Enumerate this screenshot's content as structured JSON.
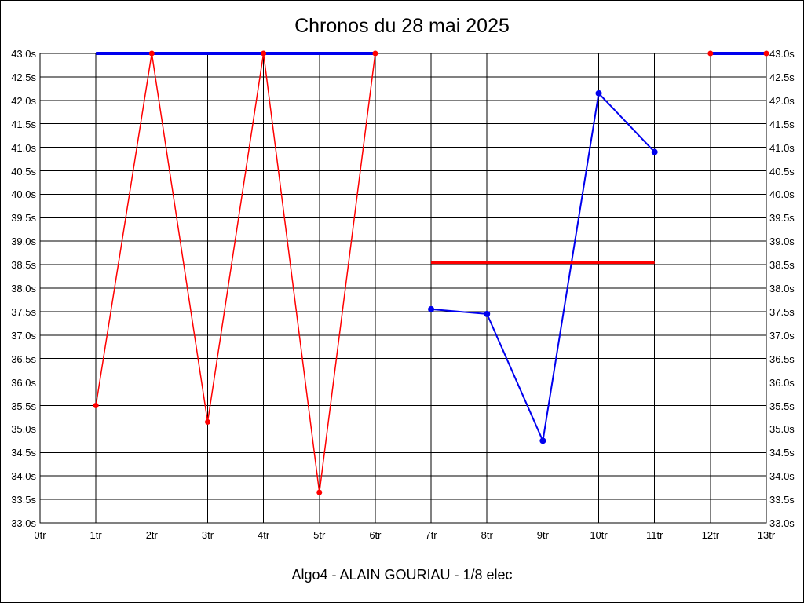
{
  "title": "Chronos du 28 mai 2025",
  "footer": "Algo4 - ALAIN GOURIAU - 1/8 elec",
  "chart_data": {
    "type": "line",
    "title": "Chronos du 28 mai 2025",
    "subtitle": "Algo4 - ALAIN GOURIAU - 1/8 elec",
    "xlabel": "",
    "ylabel": "",
    "x_unit": "tr",
    "y_unit": "s",
    "xlim": [
      0,
      13
    ],
    "ylim": [
      33.0,
      43.0
    ],
    "grid": true,
    "grid_color": "#000000",
    "axis_labels_both_sides": true,
    "x_ticks": [
      0,
      1,
      2,
      3,
      4,
      5,
      6,
      7,
      8,
      9,
      10,
      11,
      12,
      13
    ],
    "x_tick_labels": [
      "0tr",
      "1tr",
      "2tr",
      "3tr",
      "4tr",
      "5tr",
      "6tr",
      "7tr",
      "8tr",
      "9tr",
      "10tr",
      "11tr",
      "12tr",
      "13tr"
    ],
    "y_tick_step": 0.5,
    "y_tick_labels": [
      "43.0s",
      "42.5s",
      "42.0s",
      "41.5s",
      "41.0s",
      "40.5s",
      "40.0s",
      "39.5s",
      "39.0s",
      "38.5s",
      "38.0s",
      "37.5s",
      "37.0s",
      "36.5s",
      "36.0s",
      "35.5s",
      "35.0s",
      "34.5s",
      "34.0s",
      "33.5s",
      "33.0s"
    ],
    "colors": {
      "red": "#ff0000",
      "blue": "#0000ee"
    },
    "series": [
      {
        "name": "blue-series",
        "color": "#0000ee",
        "segments": [
          {
            "points": [
              [
                1,
                43.0
              ],
              [
                6,
                43.0
              ]
            ],
            "line_width": 4,
            "markers": false,
            "marker_size": 0
          },
          {
            "points": [
              [
                7,
                37.55
              ],
              [
                8,
                37.45
              ],
              [
                9,
                34.75
              ],
              [
                10,
                42.15
              ],
              [
                11,
                40.9
              ]
            ],
            "line_width": 2,
            "markers": true,
            "marker_size": 4
          },
          {
            "points": [
              [
                12,
                43.0
              ],
              [
                13,
                43.0
              ]
            ],
            "line_width": 4,
            "markers": false,
            "marker_size": 0
          }
        ]
      },
      {
        "name": "red-series",
        "color": "#ff0000",
        "segments": [
          {
            "points": [
              [
                1,
                35.5
              ],
              [
                2,
                43.0
              ],
              [
                3,
                35.15
              ],
              [
                4,
                43.0
              ],
              [
                5,
                33.65
              ],
              [
                6,
                43.0
              ]
            ],
            "line_width": 1.5,
            "markers": true,
            "marker_size": 3.5
          },
          {
            "points": [
              [
                7,
                38.55
              ],
              [
                11,
                38.55
              ]
            ],
            "line_width": 4,
            "markers": false,
            "marker_size": 0
          },
          {
            "points": [
              [
                12,
                43.0
              ],
              [
                13,
                43.0
              ]
            ],
            "line_width": 0,
            "markers": true,
            "marker_size": 3.5
          }
        ]
      }
    ]
  }
}
